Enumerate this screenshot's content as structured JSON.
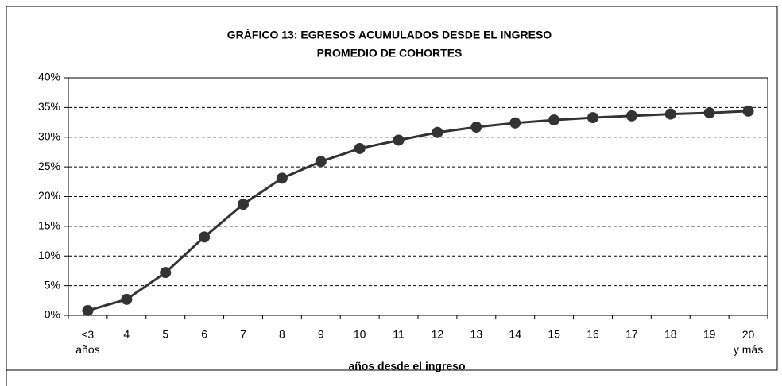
{
  "chart_data": {
    "type": "line",
    "title": "GRÁFICO 13: EGRESOS ACUMULADOS DESDE EL INGRESO",
    "subtitle": "PROMEDIO DE COHORTES",
    "x_label": "años desde el ingreso",
    "categories": [
      "≤3 años",
      "4",
      "5",
      "6",
      "7",
      "8",
      "9",
      "10",
      "11",
      "12",
      "13",
      "14",
      "15",
      "16",
      "17",
      "18",
      "19",
      "20 y más"
    ],
    "series": [
      {
        "name": "Egresos acumulados",
        "color": "#333333",
        "values": [
          0.8,
          2.7,
          7.2,
          13.2,
          18.7,
          23.1,
          25.9,
          28.1,
          29.5,
          30.8,
          31.7,
          32.4,
          32.9,
          33.3,
          33.6,
          33.9,
          34.1,
          34.4
        ]
      }
    ],
    "ylim": [
      0,
      40
    ],
    "yticks": [
      {
        "value": 0,
        "label": "0%"
      },
      {
        "value": 5,
        "label": "5%"
      },
      {
        "value": 10,
        "label": "10%"
      },
      {
        "value": 15,
        "label": "15%"
      },
      {
        "value": 20,
        "label": "20%"
      },
      {
        "value": 25,
        "label": "25%"
      },
      {
        "value": 30,
        "label": "30%"
      },
      {
        "value": 35,
        "label": "35%"
      },
      {
        "value": 40,
        "label": "40%"
      }
    ],
    "grid": true
  }
}
